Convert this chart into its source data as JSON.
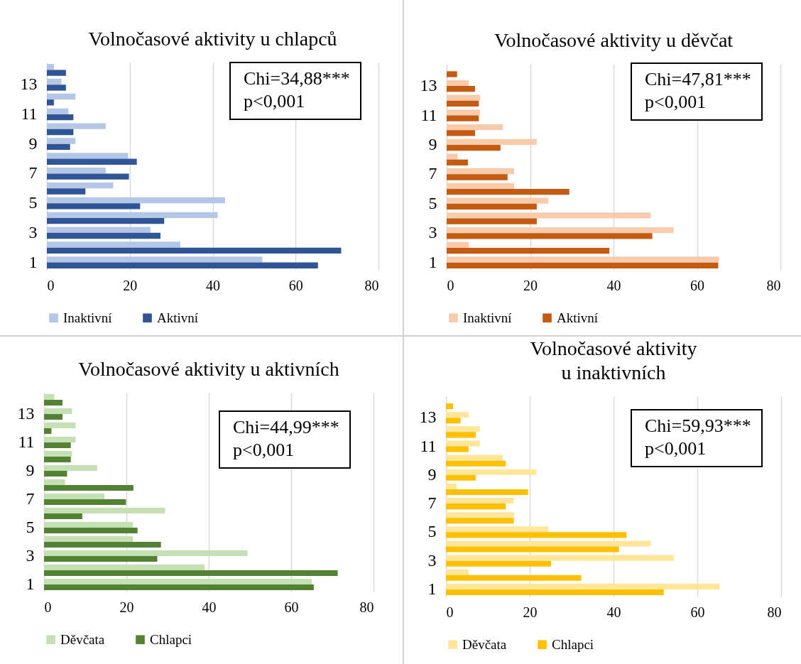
{
  "chart_data": [
    {
      "type": "bar",
      "orientation": "horizontal",
      "title": "Volnočasové aktivity u chlapců",
      "categories": [
        null,
        "13",
        null,
        "11",
        null,
        "9",
        null,
        "7",
        null,
        "5",
        null,
        "3",
        null,
        "1"
      ],
      "series": [
        {
          "name": "Inaktivní",
          "color": "#b4c7e7",
          "values": [
            1.7,
            3.5,
            6.9,
            5.2,
            14.2,
            6.9,
            19.6,
            14.2,
            16,
            43,
            41.2,
            25,
            32.2,
            52
          ]
        },
        {
          "name": "Aktivní",
          "color": "#2f5597",
          "values": [
            4.6,
            4.6,
            1.7,
            6.4,
            6.4,
            5.6,
            21.7,
            19.8,
            9.3,
            22.5,
            28.3,
            27.4,
            71,
            65.4
          ]
        }
      ],
      "xlim": [
        0,
        80
      ],
      "xticks": [
        0,
        20,
        40,
        60,
        80
      ],
      "grid": "x",
      "legend": "bottom",
      "annotations": [
        "Chi=34,88***",
        "p<0,001"
      ]
    },
    {
      "type": "bar",
      "orientation": "horizontal",
      "title": "Volnočasové aktivity u děvčat",
      "categories": [
        null,
        "13",
        null,
        "11",
        null,
        "9",
        null,
        "7",
        null,
        "5",
        null,
        "3",
        null,
        "1"
      ],
      "series": [
        {
          "name": "Inaktivní",
          "color": "#f8cbad",
          "values": [
            0,
            5.3,
            8,
            8,
            13.5,
            21.6,
            2.6,
            16.2,
            16.2,
            24.4,
            48.9,
            54.4,
            5.3,
            65.3
          ]
        },
        {
          "name": "Aktivní",
          "color": "#c55a11",
          "values": [
            2.5,
            6.8,
            7.7,
            7.7,
            6.8,
            12.9,
            5.1,
            14.6,
            29.4,
            21.6,
            21.6,
            49.3,
            39,
            65.1
          ]
        }
      ],
      "xlim": [
        0,
        80
      ],
      "xticks": [
        0,
        20,
        40,
        60,
        80
      ],
      "grid": "x",
      "legend": "bottom",
      "annotations": [
        "Chi=47,81***",
        "p<0,001"
      ]
    },
    {
      "type": "bar",
      "orientation": "horizontal",
      "title": "Volnočasové aktivity u aktivních",
      "categories": [
        null,
        "13",
        null,
        "11",
        null,
        "9",
        null,
        "7",
        null,
        "5",
        null,
        "3",
        null,
        "1"
      ],
      "series": [
        {
          "name": "Děvčata",
          "color": "#c5e0b4",
          "values": [
            2.5,
            6.8,
            7.7,
            7.7,
            6.8,
            12.9,
            5.1,
            14.7,
            29.4,
            21.6,
            21.6,
            49.4,
            39,
            65
          ]
        },
        {
          "name": "Chlapci",
          "color": "#548235",
          "values": [
            4.5,
            4.5,
            1.8,
            6.5,
            6.5,
            5.6,
            21.7,
            19.9,
            9.3,
            22.7,
            28.4,
            27.5,
            71.3,
            65.5
          ]
        }
      ],
      "xlim": [
        0,
        80
      ],
      "xticks": [
        0,
        20,
        40,
        60,
        80
      ],
      "grid": "x",
      "legend": "bottom",
      "annotations": [
        "Chi=44,99***",
        "p<0,001"
      ]
    },
    {
      "type": "bar",
      "orientation": "horizontal",
      "title": "Volnočasové aktivity\nu inaktivních",
      "categories": [
        null,
        "13",
        null,
        "11",
        null,
        "9",
        null,
        "7",
        null,
        "5",
        null,
        "3",
        null,
        "1"
      ],
      "series": [
        {
          "name": "Děvčata",
          "color": "#ffe699",
          "values": [
            0,
            5.4,
            8.1,
            8.1,
            13.5,
            21.6,
            2.6,
            16.2,
            16.2,
            24.4,
            48.9,
            54.4,
            5.4,
            65.3
          ]
        },
        {
          "name": "Chlapci",
          "color": "#ffc000",
          "values": [
            1.7,
            3.5,
            7.1,
            5.4,
            14.3,
            7.1,
            19.6,
            14.3,
            16.2,
            43.1,
            41.3,
            25.1,
            32.3,
            52
          ]
        }
      ],
      "xlim": [
        0,
        80
      ],
      "xticks": [
        0,
        20,
        40,
        60,
        80
      ],
      "grid": "x",
      "legend": "bottom",
      "annotations": [
        "Chi=59,93***",
        "p<0,001"
      ]
    }
  ]
}
